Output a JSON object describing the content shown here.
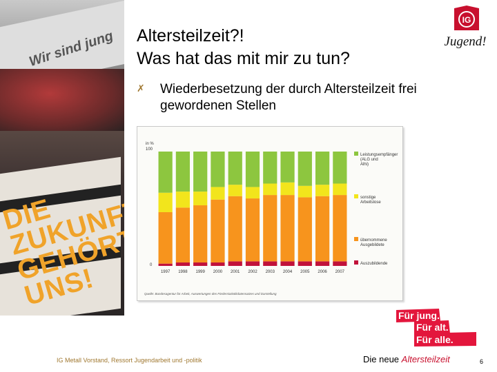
{
  "slide": {
    "title_line1": "Altersteilzeit?!",
    "title_line2": "Was hat das mit mir zu tun?",
    "bullet_icon": "cross-icon",
    "bullet_text": "Wiederbesetzung der durch Altersteilzeit frei gewordenen Stellen",
    "footer_left": "IG Metall Vorstand, Ressort Jugendarbeit und -politik",
    "footer_mid_prefix": "Die neue ",
    "footer_mid_accent": "Altersteilzeit",
    "page_number": "6",
    "stamp_lines": [
      "Für jung.",
      "Für alt.",
      "Für alle."
    ],
    "photo_slogan": "DIE\nZUKUNFT\nGEHÖRT\nUNS!",
    "photo_banner_text": "Wir sind jung",
    "logo_text": "IG",
    "logo_script": "Jugend!"
  },
  "colors": {
    "green": "#8dc63f",
    "yellow": "#f2e51c",
    "orange": "#f7941d",
    "darkred": "#c1123a",
    "accent_red": "#c8102e"
  },
  "chart_data": {
    "type": "bar",
    "stacked": true,
    "categories": [
      "1997",
      "1998",
      "1999",
      "2000",
      "2001",
      "2002",
      "2003",
      "2004",
      "2005",
      "2006",
      "2007"
    ],
    "series": [
      {
        "name": "Auszubildende",
        "color_key": "darkred",
        "values": [
          2,
          3,
          3,
          3,
          4,
          4,
          4,
          4,
          4,
          4,
          4
        ]
      },
      {
        "name": "übernommene Ausgebildete",
        "color_key": "orange",
        "values": [
          45,
          48,
          50,
          55,
          57,
          55,
          58,
          58,
          56,
          57,
          58
        ]
      },
      {
        "name": "sonstige Arbeitslose",
        "color_key": "yellow",
        "values": [
          17,
          14,
          12,
          11,
          10,
          10,
          10,
          11,
          10,
          10,
          10
        ]
      },
      {
        "name": "Leistungsempfänger (ALG und Alhi)",
        "color_key": "green",
        "values": [
          36,
          35,
          35,
          31,
          29,
          31,
          28,
          27,
          30,
          29,
          28
        ]
      }
    ],
    "legend": [
      {
        "label": "Leistungsempfänger (ALG und Alhi)",
        "color_key": "green"
      },
      {
        "label": "sonstige Arbeitslose",
        "color_key": "yellow"
      },
      {
        "label": "übernommene Ausgebildete",
        "color_key": "orange"
      },
      {
        "label": "Auszubildende",
        "color_key": "darkred"
      }
    ],
    "ylabel": "in %",
    "ytick_top": "100",
    "ytick_bottom": "0",
    "ylim": [
      0,
      100
    ],
    "source": "Quelle: Bundesagentur für Arbeit, Auswertungen des Förderstatistikdatensatzes und Darstellung"
  }
}
